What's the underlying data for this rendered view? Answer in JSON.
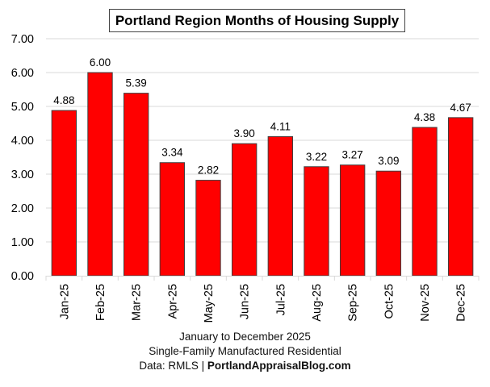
{
  "chart_data": {
    "type": "bar",
    "title": "Portland Region Months of Housing Supply",
    "categories": [
      "Jan-25",
      "Feb-25",
      "Mar-25",
      "Apr-25",
      "May-25",
      "Jun-25",
      "Jul-25",
      "Aug-25",
      "Sep-25",
      "Oct-25",
      "Nov-25",
      "Dec-25"
    ],
    "values": [
      4.88,
      6.0,
      5.39,
      3.34,
      2.82,
      3.9,
      4.11,
      3.22,
      3.27,
      3.09,
      4.38,
      4.67
    ],
    "data_labels": [
      "4.88",
      "6.00",
      "5.39",
      "3.34",
      "2.82",
      "3.90",
      "4.11",
      "3.22",
      "3.27",
      "3.09",
      "4.38",
      "4.67"
    ],
    "yticks": [
      "0.00",
      "1.00",
      "2.00",
      "3.00",
      "4.00",
      "5.00",
      "6.00",
      "7.00"
    ],
    "ylim": [
      0,
      7
    ],
    "xlabel": "",
    "ylabel": "",
    "grid": true,
    "legend": "none",
    "bar_color": "#ff0000",
    "bar_edge_color": "#404040",
    "grid_color": "#d9d9d9"
  },
  "footer": {
    "line1": "January to December 2025",
    "line2": "Single-Family Manufactured Residential",
    "line3_prefix": "Data: RMLS | ",
    "line3_site": "PortlandAppraisalBlog.com"
  }
}
